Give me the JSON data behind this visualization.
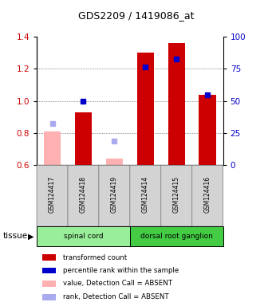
{
  "title": "GDS2209 / 1419086_at",
  "samples": [
    "GSM124417",
    "GSM124418",
    "GSM124419",
    "GSM124414",
    "GSM124415",
    "GSM124416"
  ],
  "bar_values": [
    0.81,
    0.93,
    0.64,
    1.3,
    1.36,
    1.04
  ],
  "bar_absent": [
    true,
    false,
    true,
    false,
    false,
    false
  ],
  "rank_values": [
    0.86,
    1.0,
    0.75,
    1.21,
    1.26,
    1.04
  ],
  "rank_absent": [
    true,
    false,
    true,
    false,
    false,
    false
  ],
  "ylim": [
    0.6,
    1.4
  ],
  "yticks": [
    0.6,
    0.8,
    1.0,
    1.2,
    1.4
  ],
  "right_yticks": [
    0,
    25,
    50,
    75,
    100
  ],
  "right_ylim": [
    0,
    100
  ],
  "color_bar_present": "#cc0000",
  "color_bar_absent": "#ffb0b0",
  "color_rank_present": "#0000cc",
  "color_rank_absent": "#aaaaee",
  "groups": [
    {
      "label": "spinal cord",
      "start": 0,
      "end": 3,
      "color": "#99ee99"
    },
    {
      "label": "dorsal root ganglion",
      "start": 3,
      "end": 6,
      "color": "#44cc44"
    }
  ],
  "tissue_label": "tissue",
  "bar_width": 0.55,
  "rank_marker_size": 4,
  "grid_color": "#555555",
  "background_color": "#ffffff",
  "plot_bg": "#ffffff",
  "legend_items": [
    {
      "label": "transformed count",
      "color": "#cc0000"
    },
    {
      "label": "percentile rank within the sample",
      "color": "#0000cc"
    },
    {
      "label": "value, Detection Call = ABSENT",
      "color": "#ffb0b0"
    },
    {
      "label": "rank, Detection Call = ABSENT",
      "color": "#aaaaee"
    }
  ]
}
